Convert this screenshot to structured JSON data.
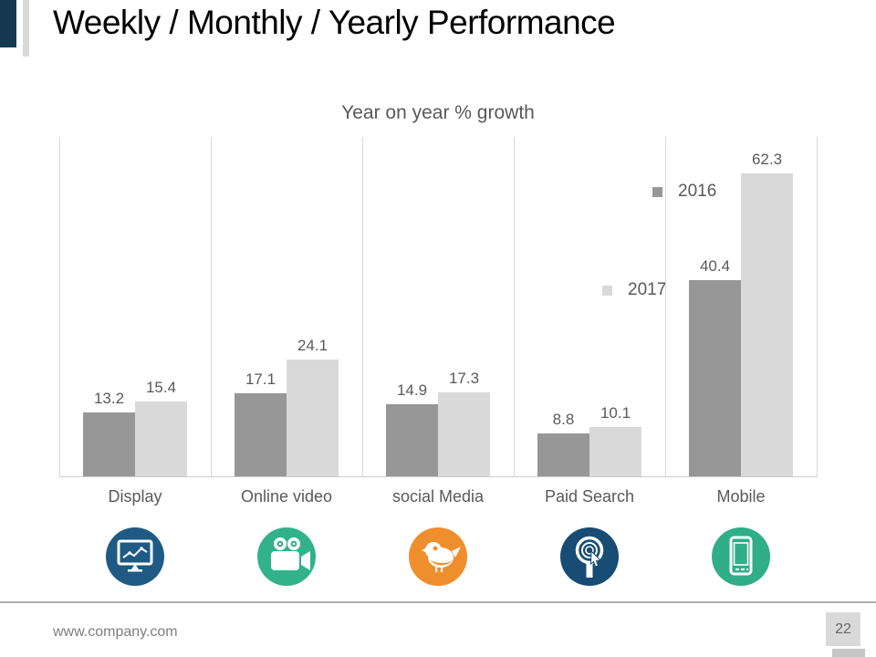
{
  "slide": {
    "title": "Weekly / Monthly / Yearly Performance",
    "footer_url": "www.company.com",
    "page_number": "22"
  },
  "chart_data": {
    "type": "bar",
    "title": "Year on year % growth",
    "categories": [
      "Display",
      "Online video",
      "social Media",
      "Paid Search",
      "Mobile"
    ],
    "series": [
      {
        "name": "2016",
        "color": "#979797",
        "values": [
          13.2,
          17.1,
          14.9,
          8.8,
          40.4
        ]
      },
      {
        "name": "2017",
        "color": "#d9d9d9",
        "values": [
          15.4,
          24.1,
          17.3,
          10.1,
          62.3
        ]
      }
    ],
    "ylim": [
      0,
      70
    ],
    "grid": "vertical-category-separators-only",
    "legend_position": "inside-right-stacked",
    "bar_label_decimals": 1,
    "text_color": "#595959"
  },
  "icons": [
    {
      "name": "display-monitor-icon",
      "color": "#1e5a83"
    },
    {
      "name": "video-camera-icon",
      "color": "#32b28b"
    },
    {
      "name": "bird-icon",
      "color": "#ef8e2d"
    },
    {
      "name": "search-click-icon",
      "color": "#174c74"
    },
    {
      "name": "smartphone-icon",
      "color": "#2fae88"
    }
  ],
  "accent_colors": {
    "title_bar_navy": "#163950",
    "title_bar_gray": "#d9d9d9"
  }
}
